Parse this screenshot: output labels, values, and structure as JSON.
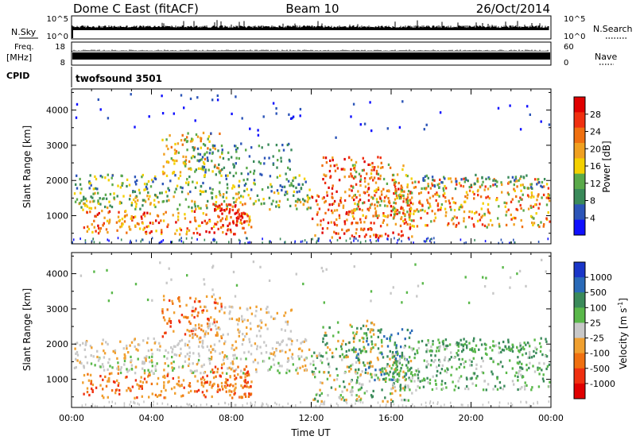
{
  "header": {
    "station": "Dome C East (fitACF)",
    "beam": "Beam 10",
    "date": "26/Oct/2014"
  },
  "side_panels": {
    "nsky_label": "N.Sky",
    "nsky_top": "10^5",
    "nsky_bottom": "10^0",
    "freq_label": "Freq.",
    "freq_unit": "[MHz]",
    "freq_top": "18",
    "freq_bottom": "8",
    "cpid_label": "CPID",
    "nsearch_label": "N.Search",
    "nsearch_top": "10^5",
    "nsearch_bottom": "10^0",
    "nave_label": "Nave",
    "nave_top": "60",
    "nave_bottom": "0",
    "cpid_value": "twofsound 3501"
  },
  "colors": {
    "power": [
      "#1010ff",
      "#2c55b8",
      "#3a8a5a",
      "#5aaa4a",
      "#f4d000",
      "#f0a020",
      "#f07010",
      "#f03010",
      "#e00000"
    ],
    "velocity": [
      "#1a36c8",
      "#2a6ab8",
      "#3a8a5a",
      "#5ab84a",
      "#c8c8c8",
      "#f0a030",
      "#f07010",
      "#f03010",
      "#e00000"
    ]
  },
  "chart_data": [
    {
      "type": "heatmap",
      "title": "Power",
      "ylabel": "Slant Range [km]",
      "ylim": [
        200,
        4600
      ],
      "yticks": [
        "1000",
        "2000",
        "3000",
        "4000"
      ],
      "colorbar_label": "Power [dB]",
      "colorbar_ticks": [
        "4",
        "8",
        "12",
        "16",
        "20",
        "24",
        "28"
      ],
      "colorbar_range": [
        0,
        32
      ]
    },
    {
      "type": "heatmap",
      "title": "Velocity",
      "ylabel": "Slant Range [km]",
      "ylim": [
        200,
        4600
      ],
      "yticks": [
        "1000",
        "2000",
        "3000",
        "4000"
      ],
      "colorbar_label": "Velocity [m s^-1]",
      "colorbar_ticks": [
        "1000",
        "500",
        "100",
        "25",
        "-25",
        "-100",
        "-500",
        "-1000"
      ],
      "xlabel": "Time UT",
      "xticks": [
        "00:00",
        "04:00",
        "08:00",
        "12:00",
        "16:00",
        "20:00",
        "00:00"
      ],
      "xlim_hours": [
        0,
        24
      ]
    }
  ]
}
